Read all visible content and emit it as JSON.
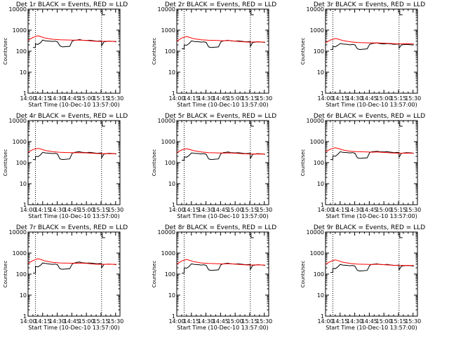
{
  "footer_label": "Start Time (10-Dec-10 13:57:00)",
  "ylabel": "Counts/sec",
  "x_ticks": [
    "14:00",
    "14:15",
    "14:30",
    "14:45",
    "15:00",
    "15:15",
    "15:30"
  ],
  "y_ticks": [
    "1",
    "10",
    "100",
    "1000",
    "10000"
  ],
  "colors": {
    "events": "#000000",
    "lld": "#ff0000",
    "axis": "#000000"
  },
  "chart_data": [
    {
      "type": "line",
      "title": "Det 1r BLACK = Events, RED = LLD",
      "xlabel": "Start Time (10-Dec-10 13:57:00)",
      "ylabel": "Counts/sec",
      "y_scale": "log",
      "ylim": [
        1,
        10000
      ],
      "xlim_minutes_after_start": [
        3,
        39
      ],
      "vlines": [
        6,
        33
      ],
      "series": [
        {
          "name": "Events",
          "x": [
            5,
            6,
            6,
            7,
            8,
            9,
            10,
            12,
            13,
            14,
            15,
            16,
            17,
            20,
            21,
            22,
            23,
            24,
            25,
            27,
            28,
            30,
            31,
            33,
            33,
            34,
            36,
            38,
            39
          ],
          "values": [
            150,
            150,
            220,
            210,
            250,
            340,
            310,
            300,
            290,
            300,
            280,
            180,
            160,
            170,
            300,
            330,
            340,
            360,
            330,
            320,
            330,
            310,
            300,
            310,
            180,
            280,
            300,
            290,
            280
          ]
        },
        {
          "name": "LLD",
          "x": [
            3,
            5,
            7,
            8,
            10,
            13,
            16,
            20,
            22,
            24,
            27,
            30,
            33,
            36,
            39
          ],
          "values": [
            330,
            450,
            540,
            500,
            420,
            370,
            350,
            340,
            330,
            340,
            320,
            300,
            290,
            300,
            290
          ]
        }
      ]
    },
    {
      "type": "line",
      "title": "Det 2r BLACK = Events, RED = LLD",
      "xlabel": "Start Time (10-Dec-10 13:57:00)",
      "ylabel": "Counts/sec",
      "y_scale": "log",
      "ylim": [
        1,
        10000
      ],
      "xlim_minutes_after_start": [
        3,
        39
      ],
      "vlines": [
        6,
        33
      ],
      "series": [
        {
          "name": "Events",
          "x": [
            5,
            6,
            6,
            7,
            8,
            9,
            10,
            12,
            13,
            14,
            15,
            16,
            17,
            20,
            21,
            22,
            23,
            24,
            25,
            27,
            28,
            30,
            31,
            33,
            33,
            34,
            36,
            38,
            39
          ],
          "values": [
            130,
            130,
            200,
            190,
            230,
            310,
            290,
            280,
            270,
            280,
            260,
            160,
            150,
            160,
            280,
            310,
            320,
            330,
            310,
            300,
            310,
            290,
            280,
            290,
            170,
            260,
            280,
            270,
            260
          ]
        },
        {
          "name": "LLD",
          "x": [
            3,
            5,
            7,
            8,
            10,
            13,
            16,
            20,
            22,
            24,
            27,
            30,
            33,
            36,
            39
          ],
          "values": [
            300,
            420,
            500,
            460,
            390,
            350,
            330,
            320,
            310,
            320,
            300,
            280,
            270,
            280,
            270
          ]
        }
      ]
    },
    {
      "type": "line",
      "title": "Det 3r BLACK = Events, RED = LLD",
      "xlabel": "Start Time (10-Dec-10 13:57:00)",
      "ylabel": "Counts/sec",
      "y_scale": "log",
      "ylim": [
        1,
        10000
      ],
      "xlim_minutes_after_start": [
        3,
        39
      ],
      "vlines": [
        6,
        33
      ],
      "series": [
        {
          "name": "Events",
          "x": [
            5,
            6,
            6,
            7,
            8,
            9,
            10,
            12,
            13,
            14,
            15,
            16,
            17,
            20,
            21,
            22,
            23,
            24,
            25,
            27,
            28,
            30,
            31,
            33,
            33,
            34,
            36,
            38,
            39
          ],
          "values": [
            120,
            120,
            170,
            160,
            190,
            230,
            220,
            210,
            200,
            210,
            200,
            130,
            120,
            130,
            210,
            230,
            240,
            250,
            230,
            220,
            230,
            220,
            210,
            220,
            140,
            200,
            210,
            200,
            200
          ]
        },
        {
          "name": "LLD",
          "x": [
            3,
            5,
            7,
            8,
            10,
            13,
            16,
            20,
            22,
            24,
            27,
            30,
            33,
            36,
            39
          ],
          "values": [
            250,
            340,
            400,
            380,
            320,
            280,
            260,
            250,
            245,
            250,
            240,
            230,
            220,
            225,
            220
          ]
        }
      ]
    },
    {
      "type": "line",
      "title": "Det 4r BLACK = Events, RED = LLD",
      "xlabel": "Start Time (10-Dec-10 13:57:00)",
      "ylabel": "Counts/sec",
      "y_scale": "log",
      "ylim": [
        1,
        10000
      ],
      "xlim_minutes_after_start": [
        3,
        39
      ],
      "vlines": [
        6,
        33
      ],
      "series": [
        {
          "name": "Events",
          "x": [
            5,
            6,
            6,
            7,
            8,
            9,
            10,
            12,
            13,
            14,
            15,
            16,
            17,
            20,
            21,
            22,
            23,
            24,
            25,
            27,
            28,
            30,
            31,
            33,
            33,
            34,
            36,
            38,
            39
          ],
          "values": [
            140,
            140,
            200,
            190,
            230,
            310,
            290,
            280,
            270,
            280,
            260,
            150,
            140,
            150,
            280,
            310,
            320,
            330,
            310,
            300,
            310,
            290,
            280,
            290,
            170,
            260,
            280,
            270,
            260
          ]
        },
        {
          "name": "LLD",
          "x": [
            3,
            5,
            7,
            8,
            10,
            13,
            16,
            20,
            22,
            24,
            27,
            30,
            33,
            36,
            39
          ],
          "values": [
            310,
            420,
            480,
            450,
            380,
            330,
            310,
            300,
            295,
            300,
            290,
            275,
            265,
            270,
            265
          ]
        }
      ]
    },
    {
      "type": "line",
      "title": "Det 5r BLACK = Events, RED = LLD",
      "xlabel": "Start Time (10-Dec-10 13:57:00)",
      "ylabel": "Counts/sec",
      "y_scale": "log",
      "ylim": [
        1,
        10000
      ],
      "xlim_minutes_after_start": [
        3,
        39
      ],
      "vlines": [
        6,
        33
      ],
      "series": [
        {
          "name": "Events",
          "x": [
            5,
            6,
            6,
            7,
            8,
            9,
            10,
            12,
            13,
            14,
            15,
            16,
            17,
            20,
            21,
            22,
            23,
            24,
            25,
            27,
            28,
            30,
            31,
            33,
            33,
            34,
            36,
            38,
            39
          ],
          "values": [
            130,
            130,
            190,
            180,
            220,
            290,
            280,
            270,
            260,
            270,
            250,
            150,
            140,
            150,
            270,
            300,
            310,
            320,
            300,
            290,
            300,
            280,
            270,
            280,
            160,
            250,
            270,
            260,
            250
          ]
        },
        {
          "name": "LLD",
          "x": [
            3,
            5,
            7,
            8,
            10,
            13,
            16,
            20,
            22,
            24,
            27,
            30,
            33,
            36,
            39
          ],
          "values": [
            300,
            400,
            460,
            430,
            370,
            320,
            300,
            290,
            285,
            290,
            280,
            265,
            255,
            260,
            255
          ]
        }
      ]
    },
    {
      "type": "line",
      "title": "Det 6r BLACK = Events, RED = LLD",
      "xlabel": "Start Time (10-Dec-10 13:57:00)",
      "ylabel": "Counts/sec",
      "y_scale": "log",
      "ylim": [
        1,
        10000
      ],
      "xlim_minutes_after_start": [
        3,
        39
      ],
      "vlines": [
        6,
        33
      ],
      "series": [
        {
          "name": "Events",
          "x": [
            5,
            6,
            6,
            7,
            8,
            9,
            10,
            12,
            13,
            14,
            15,
            16,
            17,
            20,
            21,
            22,
            23,
            24,
            25,
            27,
            28,
            30,
            31,
            33,
            33,
            34,
            36,
            38,
            39
          ],
          "values": [
            140,
            140,
            210,
            200,
            250,
            330,
            310,
            300,
            290,
            300,
            280,
            170,
            160,
            170,
            300,
            330,
            340,
            350,
            330,
            320,
            330,
            310,
            300,
            310,
            180,
            280,
            300,
            290,
            280
          ]
        },
        {
          "name": "LLD",
          "x": [
            3,
            5,
            7,
            8,
            10,
            13,
            16,
            20,
            22,
            24,
            27,
            30,
            33,
            36,
            39
          ],
          "values": [
            320,
            440,
            510,
            480,
            400,
            350,
            330,
            320,
            315,
            320,
            305,
            290,
            280,
            285,
            280
          ]
        }
      ]
    },
    {
      "type": "line",
      "title": "Det 7r BLACK = Events, RED = LLD",
      "xlabel": "Start Time (10-Dec-10 13:57:00)",
      "ylabel": "Counts/sec",
      "y_scale": "log",
      "ylim": [
        1,
        10000
      ],
      "xlim_minutes_after_start": [
        3,
        39
      ],
      "vlines": [
        6,
        33
      ],
      "series": [
        {
          "name": "Events",
          "x": [
            5,
            6,
            6,
            7,
            8,
            9,
            10,
            12,
            13,
            14,
            15,
            16,
            17,
            20,
            21,
            22,
            23,
            24,
            25,
            27,
            28,
            30,
            31,
            33,
            33,
            34,
            36,
            38,
            39
          ],
          "values": [
            110,
            110,
            230,
            220,
            260,
            340,
            320,
            300,
            290,
            300,
            280,
            180,
            170,
            180,
            300,
            340,
            360,
            380,
            350,
            330,
            340,
            320,
            310,
            320,
            200,
            290,
            300,
            290,
            280
          ]
        },
        {
          "name": "LLD",
          "x": [
            3,
            5,
            7,
            8,
            10,
            13,
            16,
            20,
            22,
            24,
            27,
            30,
            33,
            36,
            39
          ],
          "values": [
            320,
            440,
            540,
            500,
            420,
            360,
            340,
            330,
            325,
            335,
            320,
            300,
            290,
            295,
            290
          ]
        }
      ]
    },
    {
      "type": "line",
      "title": "Det 8r BLACK = Events, RED = LLD",
      "xlabel": "Start Time (10-Dec-10 13:57:00)",
      "ylabel": "Counts/sec",
      "y_scale": "log",
      "ylim": [
        1,
        10000
      ],
      "xlim_minutes_after_start": [
        3,
        39
      ],
      "vlines": [
        6,
        33
      ],
      "series": [
        {
          "name": "Events",
          "x": [
            5,
            6,
            6,
            7,
            8,
            9,
            10,
            12,
            13,
            14,
            15,
            16,
            17,
            20,
            21,
            22,
            23,
            24,
            25,
            27,
            28,
            30,
            31,
            33,
            33,
            34,
            36,
            38,
            39
          ],
          "values": [
            110,
            110,
            200,
            190,
            230,
            310,
            290,
            280,
            270,
            280,
            260,
            160,
            150,
            160,
            280,
            310,
            320,
            330,
            310,
            300,
            310,
            290,
            280,
            290,
            170,
            260,
            280,
            270,
            260
          ]
        },
        {
          "name": "LLD",
          "x": [
            3,
            5,
            7,
            8,
            10,
            13,
            16,
            20,
            22,
            24,
            27,
            30,
            33,
            36,
            39
          ],
          "values": [
            300,
            420,
            500,
            460,
            390,
            340,
            320,
            310,
            305,
            315,
            300,
            280,
            270,
            275,
            270
          ]
        }
      ]
    },
    {
      "type": "line",
      "title": "Det 9r BLACK = Events, RED = LLD",
      "xlabel": "Start Time (10-Dec-10 13:57:00)",
      "ylabel": "Counts/sec",
      "y_scale": "log",
      "ylim": [
        1,
        10000
      ],
      "xlim_minutes_after_start": [
        3,
        39
      ],
      "vlines": [
        6,
        33
      ],
      "series": [
        {
          "name": "Events",
          "x": [
            5,
            6,
            6,
            7,
            8,
            9,
            10,
            12,
            13,
            14,
            15,
            16,
            17,
            20,
            21,
            22,
            23,
            24,
            25,
            27,
            28,
            30,
            31,
            33,
            33,
            34,
            36,
            38,
            39
          ],
          "values": [
            120,
            120,
            190,
            180,
            220,
            290,
            270,
            260,
            250,
            260,
            240,
            150,
            140,
            150,
            260,
            290,
            300,
            310,
            290,
            280,
            290,
            270,
            260,
            270,
            160,
            240,
            260,
            250,
            240
          ]
        },
        {
          "name": "LLD",
          "x": [
            3,
            5,
            7,
            8,
            10,
            13,
            16,
            20,
            22,
            24,
            27,
            30,
            33,
            36,
            39
          ],
          "values": [
            290,
            400,
            470,
            440,
            370,
            320,
            300,
            290,
            285,
            295,
            280,
            265,
            255,
            260,
            255
          ]
        }
      ]
    }
  ]
}
